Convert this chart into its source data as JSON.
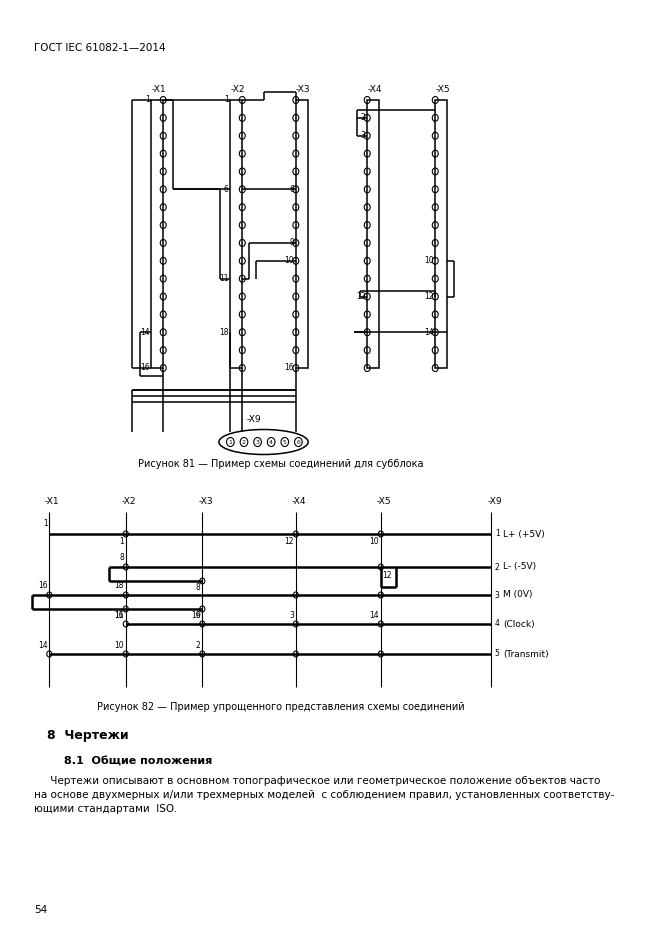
{
  "title_header": "ГОСТ IEC 61082-1—2014",
  "fig81_caption": "Рисунок 81 — Пример схемы соединений для субблока",
  "fig82_caption": "Рисунок 82 — Пример упрощенного представления схемы соединений",
  "section_title": "8  Чертежи",
  "subsection_title": "8.1  Общие положения",
  "body_text_lines": [
    "     Чертежи описывают в основном топографическое или геометрическое положение объектов часто",
    "на основе двухмерных и/или трехмерных моделей  с соблюдением правил, установленных соответству-",
    "ющими стандартами  ISO."
  ],
  "page_number": "54",
  "bg": "#ffffff",
  "fg": "#000000"
}
